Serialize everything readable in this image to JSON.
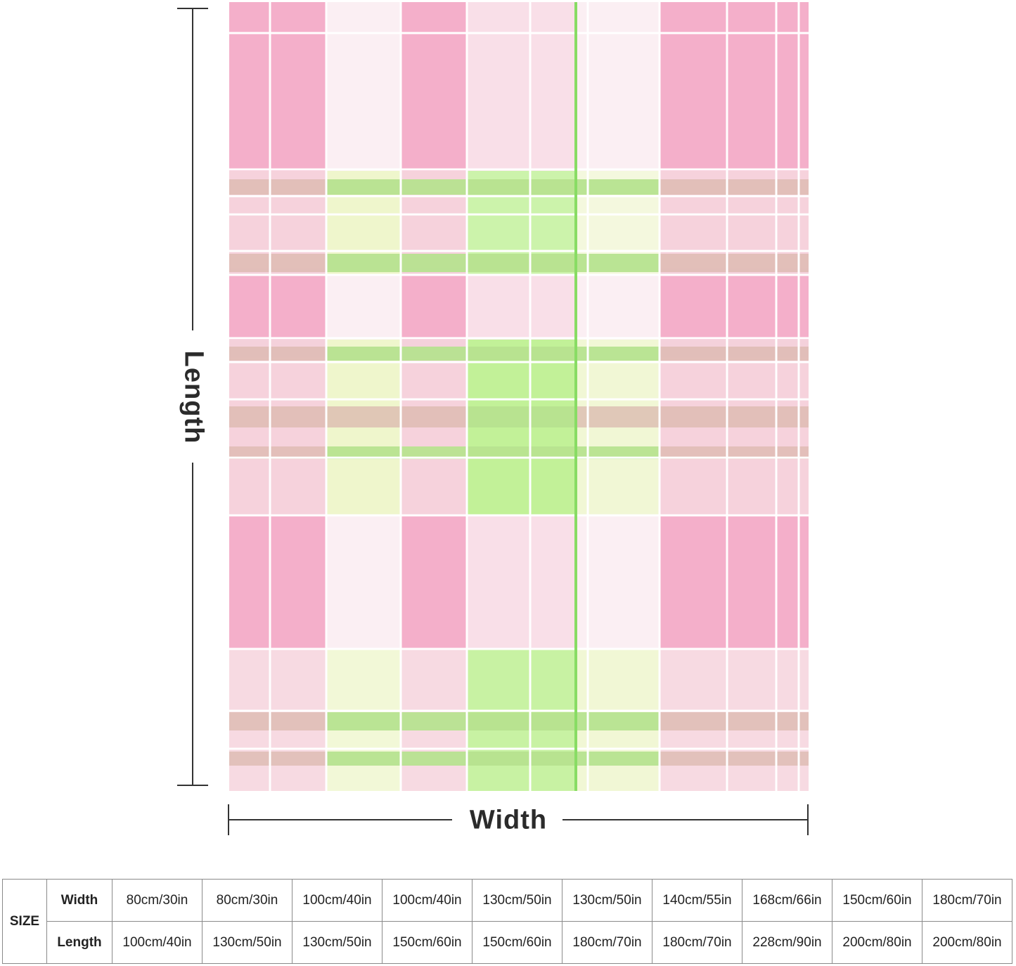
{
  "product": {
    "colors": {
      "pink": "#f4a9c6",
      "light_pink": "#f9dde7",
      "pale": "#fbeef2",
      "green": "#a8ec7e",
      "light_green": "#e4f5b8",
      "tan": "#d9b3a8",
      "stripe": "#7ed957"
    }
  },
  "dimensions": {
    "length_label": "Length",
    "width_label": "Width"
  },
  "size_table": {
    "size_label": "SIZE",
    "rows": [
      {
        "label": "Width",
        "values": [
          "80cm/30in",
          "80cm/30in",
          "100cm/40in",
          "100cm/40in",
          "130cm/50in",
          "130cm/50in",
          "140cm/55in",
          "168cm/66in",
          "150cm/60in",
          "180cm/70in"
        ]
      },
      {
        "label": "Length",
        "values": [
          "100cm/40in",
          "130cm/50in",
          "130cm/50in",
          "150cm/60in",
          "150cm/60in",
          "180cm/70in",
          "180cm/70in",
          "228cm/90in",
          "200cm/80in",
          "200cm/80in"
        ]
      }
    ]
  }
}
